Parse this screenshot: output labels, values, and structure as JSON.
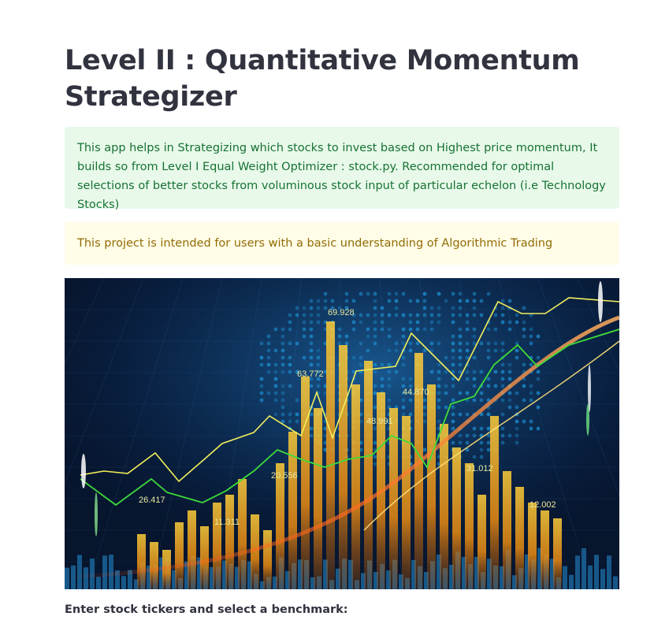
{
  "page": {
    "title": "Level II : Quantitative Momentum Strategizer"
  },
  "alerts": {
    "success_text": "This app helps in Strategizing which stocks to invest based on Highest price momentum, It builds so from Level I Equal Weight Optimizer : stock.py. Recommended for optimal selections of better stocks from voluminous stock input of particular echelon (i.e Technology Stocks)",
    "warning_text": "This project is intended for users with a basic understanding of Algorithmic Trading"
  },
  "hero_image": {
    "labels": [
      "69.928",
      "63.772",
      "44.870",
      "48.991",
      "20.556",
      "26.417",
      "11.311",
      "31.012",
      "12.002"
    ],
    "colors": {
      "background": "#07152d",
      "bar": "#f5b21d",
      "yellow_line": "#f2ee5a",
      "green_line": "#3fdc3a",
      "map_dots": "#1d8fd0"
    }
  },
  "form": {
    "prompt_label": "Enter stock tickers and select a benchmark:"
  }
}
